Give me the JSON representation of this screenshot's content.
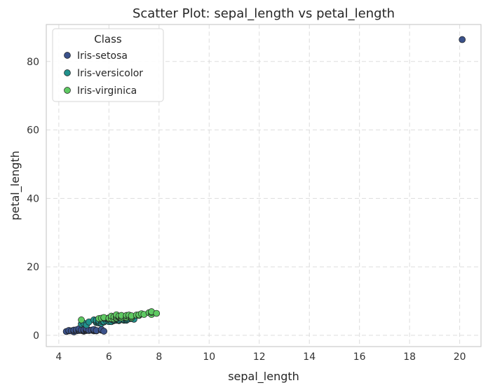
{
  "chart_data": {
    "type": "scatter",
    "title": "Scatter Plot: sepal_length vs petal_length",
    "xlabel": "sepal_length",
    "ylabel": "petal_length",
    "xlim": [
      3.5,
      20.85
    ],
    "ylim": [
      -3.3,
      90.8
    ],
    "xticks": [
      4,
      6,
      8,
      10,
      12,
      14,
      16,
      18,
      20
    ],
    "yticks": [
      0,
      20,
      40,
      60,
      80
    ],
    "grid": true,
    "legend": {
      "title": "Class",
      "placement": "top-left"
    },
    "series": [
      {
        "name": "Iris-setosa",
        "color": "#3b528b",
        "points": [
          [
            4.3,
            1.1
          ],
          [
            4.4,
            1.3
          ],
          [
            4.4,
            1.4
          ],
          [
            4.5,
            1.3
          ],
          [
            4.6,
            1.0
          ],
          [
            4.6,
            1.4
          ],
          [
            4.6,
            1.5
          ],
          [
            4.7,
            1.3
          ],
          [
            4.7,
            1.6
          ],
          [
            4.8,
            1.4
          ],
          [
            4.8,
            1.6
          ],
          [
            4.8,
            1.9
          ],
          [
            4.9,
            1.4
          ],
          [
            4.9,
            1.5
          ],
          [
            5.0,
            1.2
          ],
          [
            5.0,
            1.4
          ],
          [
            5.0,
            1.6
          ],
          [
            5.1,
            1.4
          ],
          [
            5.1,
            1.5
          ],
          [
            5.1,
            1.7
          ],
          [
            5.1,
            1.9
          ],
          [
            5.2,
            1.4
          ],
          [
            5.2,
            1.5
          ],
          [
            5.3,
            1.5
          ],
          [
            5.4,
            1.3
          ],
          [
            5.4,
            1.5
          ],
          [
            5.4,
            1.7
          ],
          [
            5.5,
            1.3
          ],
          [
            5.5,
            1.4
          ],
          [
            5.7,
            1.5
          ],
          [
            5.7,
            1.7
          ],
          [
            5.8,
            1.2
          ],
          [
            20.1,
            86.4
          ]
        ]
      },
      {
        "name": "Iris-versicolor",
        "color": "#21918c",
        "points": [
          [
            4.9,
            3.3
          ],
          [
            5.0,
            3.5
          ],
          [
            5.1,
            3.0
          ],
          [
            5.2,
            3.9
          ],
          [
            5.4,
            4.5
          ],
          [
            5.5,
            3.7
          ],
          [
            5.5,
            4.0
          ],
          [
            5.5,
            4.4
          ],
          [
            5.6,
            3.6
          ],
          [
            5.6,
            3.9
          ],
          [
            5.6,
            4.2
          ],
          [
            5.7,
            3.5
          ],
          [
            5.7,
            4.1
          ],
          [
            5.7,
            4.5
          ],
          [
            5.8,
            3.9
          ],
          [
            5.8,
            4.0
          ],
          [
            5.9,
            4.2
          ],
          [
            5.9,
            4.8
          ],
          [
            6.0,
            4.0
          ],
          [
            6.0,
            4.5
          ],
          [
            6.0,
            5.1
          ],
          [
            6.1,
            4.0
          ],
          [
            6.1,
            4.7
          ],
          [
            6.2,
            4.3
          ],
          [
            6.2,
            4.5
          ],
          [
            6.3,
            4.4
          ],
          [
            6.3,
            4.7
          ],
          [
            6.3,
            4.9
          ],
          [
            6.4,
            4.3
          ],
          [
            6.4,
            4.5
          ],
          [
            6.5,
            4.6
          ],
          [
            6.6,
            4.4
          ],
          [
            6.6,
            4.6
          ],
          [
            6.7,
            4.4
          ],
          [
            6.7,
            4.7
          ],
          [
            6.7,
            5.0
          ],
          [
            6.8,
            4.8
          ],
          [
            6.9,
            4.9
          ],
          [
            7.0,
            4.7
          ]
        ]
      },
      {
        "name": "Iris-virginica",
        "color": "#5ec962",
        "points": [
          [
            4.9,
            4.5
          ],
          [
            5.6,
            4.9
          ],
          [
            5.7,
            5.0
          ],
          [
            5.8,
            5.1
          ],
          [
            5.8,
            5.2
          ],
          [
            6.0,
            4.8
          ],
          [
            6.0,
            5.0
          ],
          [
            6.1,
            4.9
          ],
          [
            6.1,
            5.6
          ],
          [
            6.2,
            4.8
          ],
          [
            6.2,
            5.4
          ],
          [
            6.3,
            4.9
          ],
          [
            6.3,
            5.1
          ],
          [
            6.3,
            5.6
          ],
          [
            6.3,
            6.0
          ],
          [
            6.4,
            5.3
          ],
          [
            6.4,
            5.5
          ],
          [
            6.4,
            5.6
          ],
          [
            6.5,
            5.1
          ],
          [
            6.5,
            5.5
          ],
          [
            6.5,
            5.8
          ],
          [
            6.7,
            5.2
          ],
          [
            6.7,
            5.7
          ],
          [
            6.7,
            5.8
          ],
          [
            6.8,
            5.5
          ],
          [
            6.8,
            5.9
          ],
          [
            6.9,
            5.1
          ],
          [
            6.9,
            5.4
          ],
          [
            6.9,
            5.7
          ],
          [
            7.1,
            5.9
          ],
          [
            7.2,
            5.8
          ],
          [
            7.2,
            6.0
          ],
          [
            7.3,
            6.3
          ],
          [
            7.4,
            6.1
          ],
          [
            7.6,
            6.6
          ],
          [
            7.7,
            6.1
          ],
          [
            7.7,
            6.7
          ],
          [
            7.7,
            6.9
          ],
          [
            7.9,
            6.4
          ]
        ]
      }
    ]
  }
}
